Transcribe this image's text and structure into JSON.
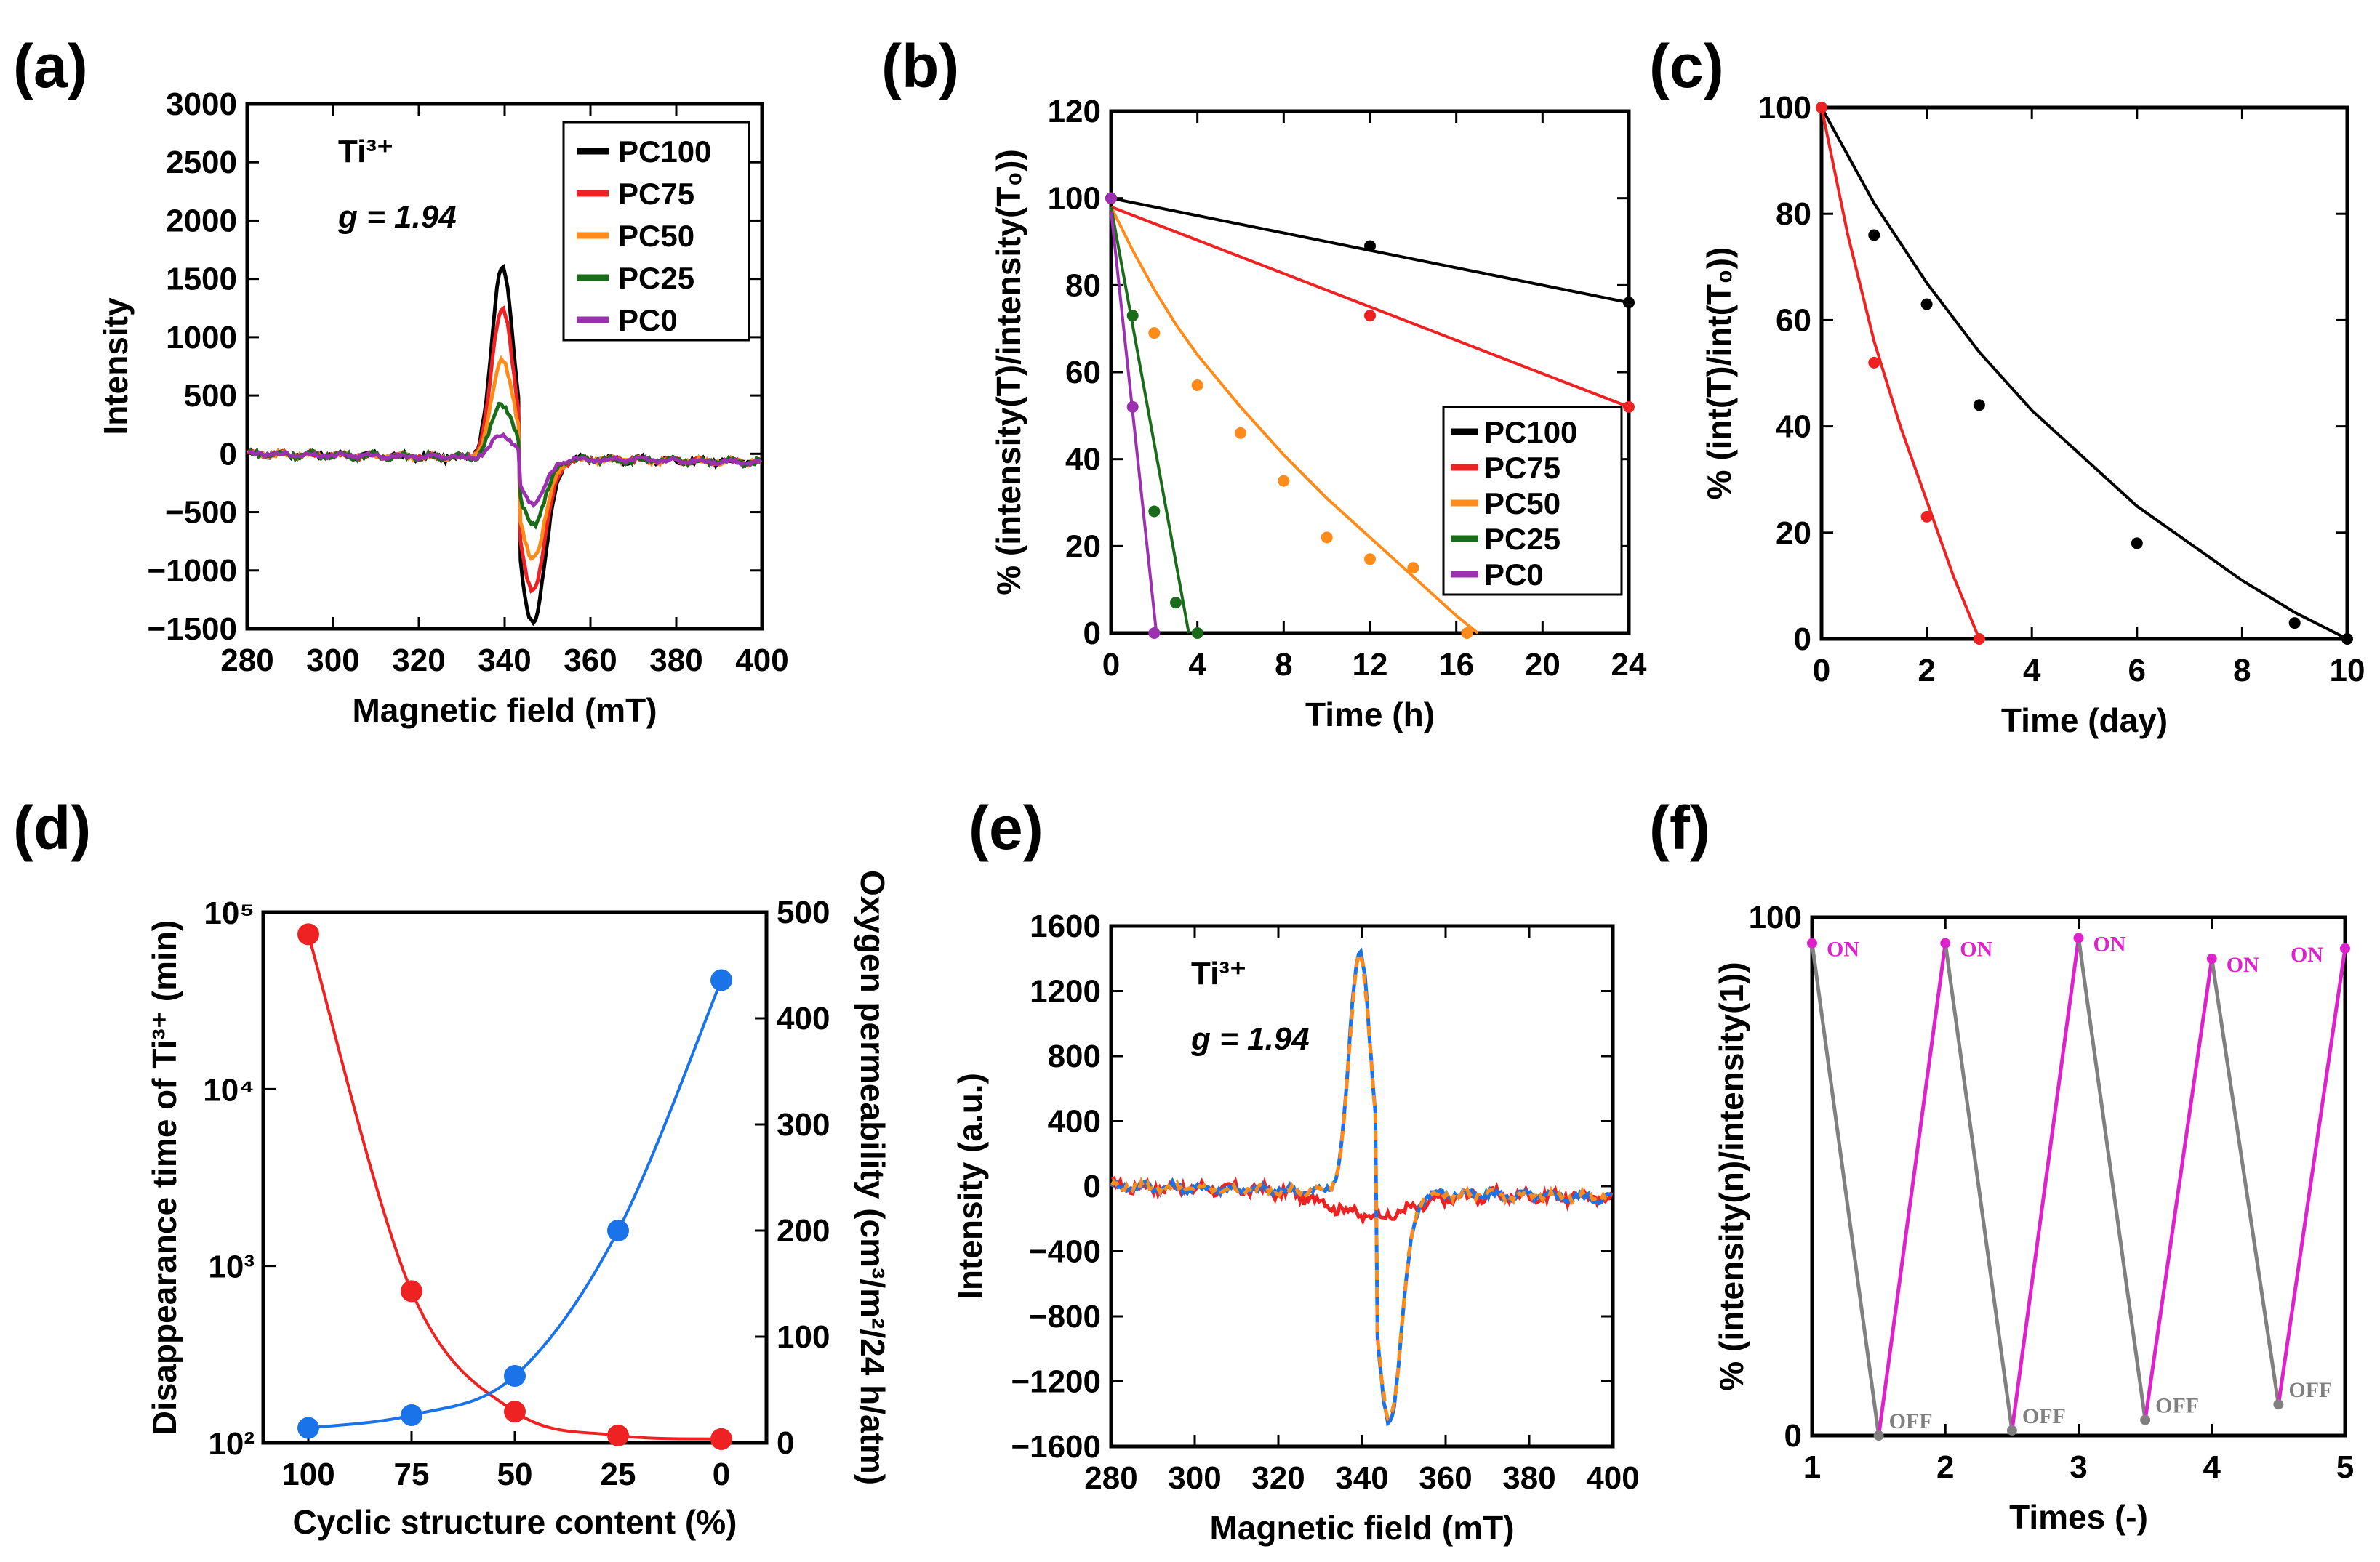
{
  "chart_data": [
    {
      "id": "a",
      "panel_label": "(a)",
      "type": "line",
      "xlabel": "Magnetic field (mT)",
      "ylabel": "Intensity",
      "xlim": [
        280,
        400
      ],
      "ylim": [
        -1500,
        3000
      ],
      "xticks": [
        280,
        300,
        320,
        340,
        360,
        380,
        400
      ],
      "yticks": [
        -1500,
        -1000,
        -500,
        0,
        500,
        1000,
        1500,
        2000,
        2500,
        3000
      ],
      "ytick_labels": [
        "−1500",
        "−1000",
        "−500",
        "0",
        "500",
        "1000",
        "1500",
        "2000",
        "2500",
        "3000"
      ],
      "annotation_species": "Ti³⁺",
      "annotation_g": "g = 1.94",
      "legend_position": "top-right",
      "series": [
        {
          "name": "PC100",
          "color": "#000000",
          "amp_pos": 1650,
          "amp_neg": -1400,
          "noise": 45
        },
        {
          "name": "PC75",
          "color": "#ee2222",
          "amp_pos": 1300,
          "amp_neg": -1120,
          "noise": 40
        },
        {
          "name": "PC50",
          "color": "#ff8c1a",
          "amp_pos": 850,
          "amp_neg": -850,
          "noise": 40
        },
        {
          "name": "PC25",
          "color": "#1a6b1a",
          "amp_pos": 470,
          "amp_neg": -560,
          "noise": 45
        },
        {
          "name": "PC0",
          "color": "#9b30b0",
          "amp_pos": 200,
          "amp_neg": -380,
          "noise": 30
        }
      ]
    },
    {
      "id": "b",
      "panel_label": "(b)",
      "type": "scatter",
      "xlabel": "Time (h)",
      "ylabel": "% (intensity(T)/intensity(T₀))",
      "xlim": [
        0,
        24
      ],
      "ylim": [
        0,
        120
      ],
      "xticks": [
        0,
        4,
        8,
        12,
        16,
        20,
        24
      ],
      "yticks": [
        0,
        20,
        40,
        60,
        80,
        100,
        120
      ],
      "legend_position": "bottom-right",
      "series": [
        {
          "name": "PC100",
          "color": "#000000",
          "points": [
            [
              0,
              100
            ],
            [
              12,
              89
            ],
            [
              24,
              76
            ]
          ],
          "fit": [
            [
              0,
              100
            ],
            [
              24,
              76
            ]
          ]
        },
        {
          "name": "PC75",
          "color": "#ee2222",
          "points": [
            [
              0,
              100
            ],
            [
              12,
              73
            ],
            [
              24,
              52
            ]
          ],
          "fit": [
            [
              0,
              98
            ],
            [
              24,
              52
            ]
          ]
        },
        {
          "name": "PC50",
          "color": "#ff8c1a",
          "points": [
            [
              0,
              100
            ],
            [
              2,
              69
            ],
            [
              4,
              57
            ],
            [
              6,
              46
            ],
            [
              8,
              35
            ],
            [
              10,
              22
            ],
            [
              12,
              17
            ],
            [
              14,
              15
            ],
            [
              16.5,
              0
            ]
          ],
          "fit": [
            [
              0,
              98
            ],
            [
              1,
              88
            ],
            [
              2,
              79
            ],
            [
              3,
              71
            ],
            [
              4,
              64
            ],
            [
              6,
              52
            ],
            [
              8,
              41
            ],
            [
              10,
              31
            ],
            [
              12,
              22
            ],
            [
              14,
              13
            ],
            [
              16,
              4
            ],
            [
              17,
              0
            ]
          ]
        },
        {
          "name": "PC25",
          "color": "#1a6b1a",
          "points": [
            [
              0,
              100
            ],
            [
              1,
              73
            ],
            [
              2,
              28
            ],
            [
              3,
              7
            ],
            [
              4,
              0
            ]
          ],
          "fit": [
            [
              0,
              98
            ],
            [
              3.6,
              0
            ]
          ]
        },
        {
          "name": "PC0",
          "color": "#9b30b0",
          "points": [
            [
              0,
              100
            ],
            [
              1,
              52
            ],
            [
              2,
              0
            ]
          ],
          "fit": [
            [
              0,
              97
            ],
            [
              2.1,
              0
            ]
          ]
        }
      ]
    },
    {
      "id": "c",
      "panel_label": "(c)",
      "type": "scatter",
      "xlabel": "Time (day)",
      "ylabel": "% (int(T)/int(T₀))",
      "xlim": [
        0,
        10
      ],
      "ylim": [
        0,
        100
      ],
      "xticks": [
        0,
        2,
        4,
        6,
        8,
        10
      ],
      "yticks": [
        0,
        20,
        40,
        60,
        80,
        100
      ],
      "series": [
        {
          "name": "black",
          "color": "#000000",
          "points": [
            [
              0,
              100
            ],
            [
              1,
              76
            ],
            [
              2,
              63
            ],
            [
              3,
              44
            ],
            [
              6,
              18
            ],
            [
              9,
              3
            ],
            [
              10,
              0
            ]
          ],
          "fit": [
            [
              0,
              100
            ],
            [
              1,
              82
            ],
            [
              2,
              67
            ],
            [
              3,
              54
            ],
            [
              4,
              43
            ],
            [
              5,
              34
            ],
            [
              6,
              25
            ],
            [
              7,
              18
            ],
            [
              8,
              11
            ],
            [
              9,
              5
            ],
            [
              10,
              0
            ]
          ]
        },
        {
          "name": "red",
          "color": "#ee2222",
          "points": [
            [
              0,
              100
            ],
            [
              1,
              52
            ],
            [
              2,
              23
            ],
            [
              3,
              0
            ]
          ],
          "fit": [
            [
              0,
              100
            ],
            [
              0.5,
              76
            ],
            [
              1,
              56
            ],
            [
              1.5,
              40
            ],
            [
              2,
              26
            ],
            [
              2.5,
              12
            ],
            [
              3,
              0
            ]
          ]
        }
      ]
    },
    {
      "id": "d",
      "panel_label": "(d)",
      "type": "line",
      "xlabel": "Cyclic structure content (%)",
      "categories": [
        "100",
        "75",
        "50",
        "25",
        "0"
      ],
      "ylabel_left": "Disappearance time of Ti³⁺ (min)",
      "ylabel_left_color": "#ee2222",
      "ylabel_right": "Oxygen permeability (cm³/m²/24 h/atm)",
      "ylabel_right_color": "#1a73e8",
      "ylim_left_log": [
        100,
        100000
      ],
      "yticks_left": [
        100,
        1000,
        10000,
        100000
      ],
      "ytick_left_labels": [
        "10²",
        "10³",
        "10⁴",
        "10⁵"
      ],
      "ylim_right": [
        0,
        500
      ],
      "yticks_right": [
        0,
        100,
        200,
        300,
        400,
        500
      ],
      "series": [
        {
          "name": "Disappearance time",
          "axis": "left",
          "color": "#ee2222",
          "values": [
            75000,
            720,
            150,
            110,
            105
          ]
        },
        {
          "name": "Oxygen permeability",
          "axis": "right",
          "color": "#1a73e8",
          "values": [
            14,
            26,
            63,
            200,
            436
          ]
        }
      ]
    },
    {
      "id": "e",
      "panel_label": "(e)",
      "type": "line",
      "xlabel": "Magnetic field (mT)",
      "ylabel": "Intensity (a.u.)",
      "xlim": [
        280,
        400
      ],
      "ylim": [
        -1600,
        1600
      ],
      "xticks": [
        280,
        300,
        320,
        340,
        360,
        380,
        400
      ],
      "yticks": [
        -1600,
        -1200,
        -800,
        -400,
        0,
        400,
        800,
        1200,
        1600
      ],
      "ytick_labels": [
        "−1600",
        "−1200",
        "−800",
        "−400",
        "0",
        "400",
        "800",
        "1200",
        "1600"
      ],
      "annotation_species": "Ti³⁺",
      "annotation_g": "g = 1.94",
      "series": [
        {
          "name": "red",
          "color": "#ee2222",
          "amp_pos": 0,
          "amp_neg": -160,
          "noise": 60
        },
        {
          "name": "blue",
          "color": "#1a73e8",
          "amp_pos": 1500,
          "amp_neg": -1400,
          "noise": 45
        },
        {
          "name": "orange-dashed",
          "color": "#ff8c1a",
          "dashed": true,
          "amp_pos": 1470,
          "amp_neg": -1380,
          "noise": 45
        }
      ]
    },
    {
      "id": "f",
      "panel_label": "(f)",
      "type": "line",
      "xlabel": "Times (-)",
      "ylabel": "% (intensity(n)/intensity(1))",
      "xlim": [
        1,
        5
      ],
      "ylim": [
        0,
        100
      ],
      "xticks": [
        1,
        2,
        3,
        4,
        5
      ],
      "yticks": [
        0,
        100
      ],
      "on_label": "ON",
      "off_label": "OFF",
      "on_color": "#dd22cc",
      "off_color": "#808080",
      "on_points": [
        [
          1,
          95
        ],
        [
          2,
          95
        ],
        [
          3,
          96
        ],
        [
          4,
          92
        ],
        [
          5,
          94
        ]
      ],
      "off_points": [
        [
          1.5,
          0
        ],
        [
          2.5,
          1
        ],
        [
          3.5,
          3
        ],
        [
          4.5,
          6
        ]
      ]
    }
  ]
}
